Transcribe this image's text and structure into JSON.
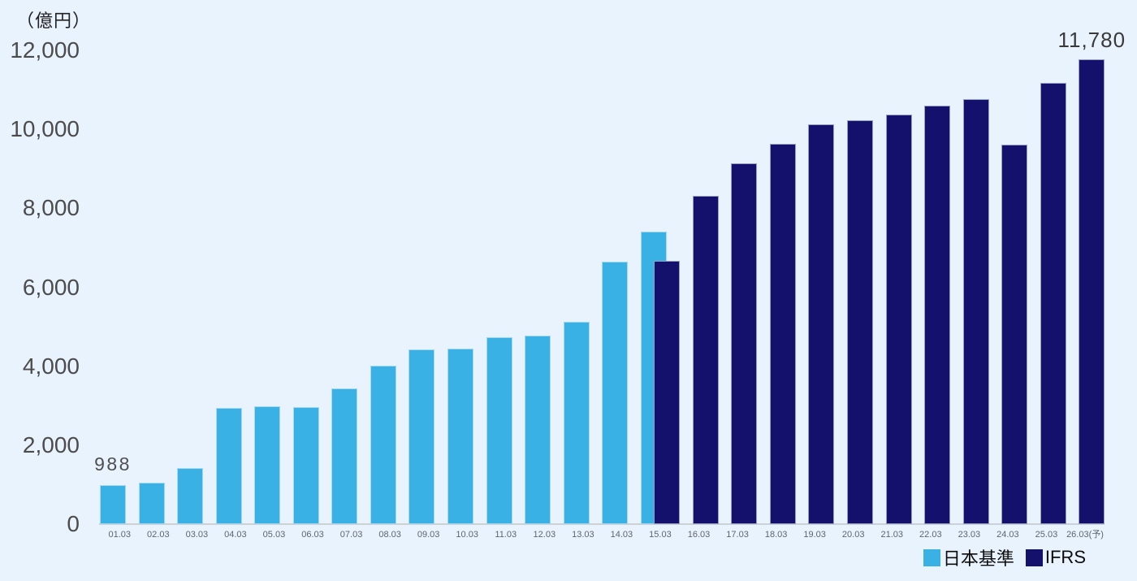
{
  "unit_label": "（億円）",
  "chart_data": {
    "type": "bar",
    "title": "",
    "ylabel": "（億円）",
    "xlabel": "",
    "ylim": [
      0,
      12000
    ],
    "yticks": [
      0,
      2000,
      4000,
      6000,
      8000,
      10000,
      12000
    ],
    "grid": false,
    "legend_position": "bottom-right",
    "background_color": "#e9f3fd",
    "categories": [
      "01.03",
      "02.03",
      "03.03",
      "04.03",
      "05.03",
      "06.03",
      "07.03",
      "08.03",
      "09.03",
      "10.03",
      "11.03",
      "12.03",
      "13.03",
      "14.03",
      "15.03",
      "16.03",
      "17.03",
      "18.03",
      "19.03",
      "20.03",
      "21.03",
      "22.03",
      "23.03",
      "24.03",
      "25.03",
      "26.03(予)"
    ],
    "series": [
      {
        "name": "日本基準",
        "color": "#3ab1e5",
        "values": [
          988,
          1050,
          1430,
          2950,
          2980,
          2970,
          3440,
          4010,
          4420,
          4440,
          4730,
          4780,
          5130,
          6640,
          7420,
          null,
          null,
          null,
          null,
          null,
          null,
          null,
          null,
          null,
          null,
          null
        ]
      },
      {
        "name": "IFRS",
        "color": "#13116b",
        "values": [
          null,
          null,
          null,
          null,
          null,
          null,
          null,
          null,
          null,
          null,
          null,
          null,
          null,
          null,
          6660,
          8320,
          9140,
          9630,
          10130,
          10240,
          10380,
          10600,
          10770,
          9620,
          11180,
          11780
        ]
      }
    ],
    "annotations": [
      {
        "text": "988",
        "category_index": 0,
        "series": "日本基準"
      },
      {
        "text": "11,780",
        "category_index": 25,
        "series": "IFRS"
      }
    ]
  }
}
